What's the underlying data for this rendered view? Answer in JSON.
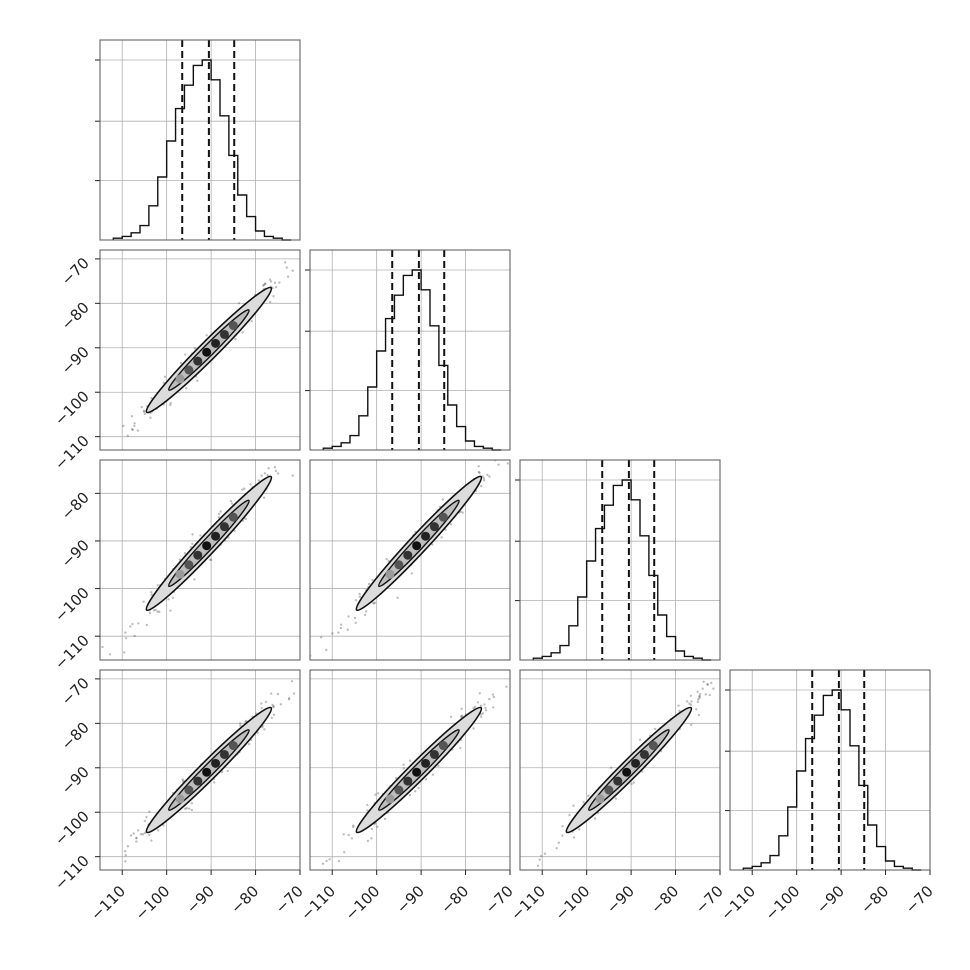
{
  "chart_data": {
    "type": "corner",
    "parameters": 4,
    "grid": true,
    "histograms": [
      {
        "param": 1,
        "bins": [
          -112,
          -110,
          -108,
          -106,
          -104,
          -102,
          -100,
          -98,
          -96,
          -94,
          -92,
          -90,
          -88,
          -86,
          -84,
          -82,
          -80,
          -78,
          -76,
          -74,
          -72
        ],
        "counts": [
          0.01,
          0.02,
          0.04,
          0.08,
          0.19,
          0.35,
          0.55,
          0.73,
          0.86,
          0.97,
          1.0,
          0.89,
          0.69,
          0.47,
          0.25,
          0.13,
          0.05,
          0.02,
          0.01,
          0.0
        ],
        "quantiles": [
          -96.5,
          -90.5,
          -84.8
        ]
      },
      {
        "param": 2,
        "bins": [
          -112,
          -110,
          -108,
          -106,
          -104,
          -102,
          -100,
          -98,
          -96,
          -94,
          -92,
          -90,
          -88,
          -86,
          -84,
          -82,
          -80,
          -78,
          -76,
          -74,
          -72
        ],
        "counts": [
          0.01,
          0.02,
          0.04,
          0.08,
          0.19,
          0.35,
          0.55,
          0.73,
          0.86,
          0.97,
          1.0,
          0.89,
          0.69,
          0.47,
          0.25,
          0.13,
          0.05,
          0.02,
          0.01,
          0.0
        ],
        "quantiles": [
          -96.5,
          -90.5,
          -84.8
        ]
      },
      {
        "param": 3,
        "bins": [
          -112,
          -110,
          -108,
          -106,
          -104,
          -102,
          -100,
          -98,
          -96,
          -94,
          -92,
          -90,
          -88,
          -86,
          -84,
          -82,
          -80,
          -78,
          -76,
          -74,
          -72
        ],
        "counts": [
          0.01,
          0.02,
          0.04,
          0.08,
          0.19,
          0.35,
          0.55,
          0.73,
          0.86,
          0.97,
          1.0,
          0.89,
          0.69,
          0.47,
          0.25,
          0.13,
          0.05,
          0.02,
          0.01,
          0.0
        ],
        "quantiles": [
          -96.5,
          -90.5,
          -84.8
        ]
      },
      {
        "param": 4,
        "bins": [
          -112,
          -110,
          -108,
          -106,
          -104,
          -102,
          -100,
          -98,
          -96,
          -94,
          -92,
          -90,
          -88,
          -86,
          -84,
          -82,
          -80,
          -78,
          -76,
          -74,
          -72
        ],
        "counts": [
          0.01,
          0.02,
          0.04,
          0.08,
          0.19,
          0.35,
          0.55,
          0.73,
          0.86,
          0.97,
          1.0,
          0.89,
          0.69,
          0.47,
          0.25,
          0.13,
          0.05,
          0.02,
          0.01,
          0.0
        ],
        "quantiles": [
          -96.5,
          -90.5,
          -84.8
        ]
      }
    ],
    "scatter_2d": {
      "center": [
        -90.5,
        -90.5
      ],
      "sigma": 6,
      "correlation": 0.98,
      "range": [
        -113,
        -72
      ],
      "contour_levels": 2,
      "density_points": [
        [
          -97,
          -97
        ],
        [
          -95,
          -95
        ],
        [
          -93,
          -93
        ],
        [
          -91,
          -91
        ],
        [
          -89,
          -89
        ],
        [
          -87,
          -87
        ],
        [
          -85,
          -85
        ]
      ]
    },
    "x_tick_labels": [
      "−110",
      "−100",
      "−90",
      "−80",
      "−70"
    ],
    "x_tick_values": [
      -110,
      -100,
      -90,
      -80,
      -70
    ],
    "y_tick_labels": [
      "−70",
      "−80",
      "−90",
      "−100",
      "−110"
    ],
    "y_tick_values": [
      -70,
      -80,
      -90,
      -100,
      -110
    ],
    "x_ranges": [
      [
        -115,
        -70
      ],
      [
        -115,
        -70
      ],
      [
        -115,
        -70
      ],
      [
        -115,
        -70
      ]
    ],
    "y_ranges": {
      "row2": [
        -113,
        -68
      ],
      "row3": [
        -115,
        -73
      ],
      "row4": [
        -113,
        -68
      ]
    }
  }
}
